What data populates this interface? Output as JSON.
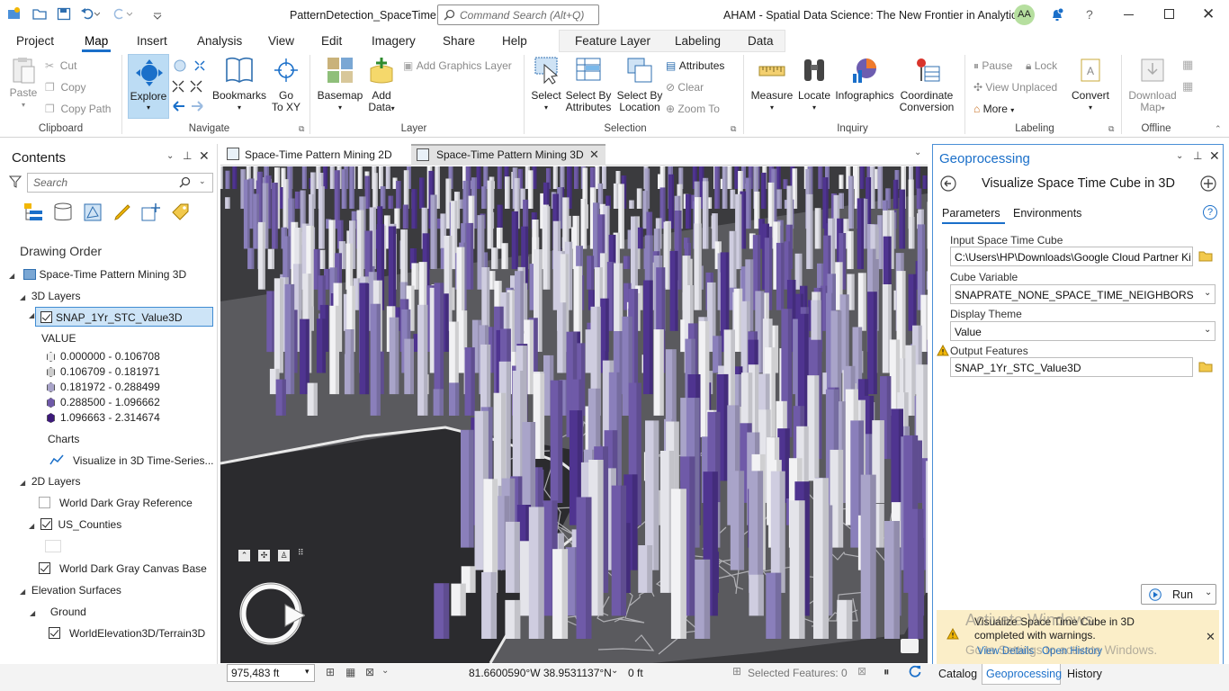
{
  "titlebar": {
    "project_title": "PatternDetection_SpaceTime",
    "command_search_placeholder": "Command Search (Alt+Q)",
    "org_title": "AHAM - Spatial Data Science:  The New Frontier in Analytics",
    "user_initials": "AA"
  },
  "ribbon_tabs": [
    "Project",
    "Map",
    "Insert",
    "Analysis",
    "View",
    "Edit",
    "Imagery",
    "Share",
    "Help"
  ],
  "contextual_tabs": [
    "Feature Layer",
    "Labeling",
    "Data"
  ],
  "clipboard": {
    "paste": "Paste",
    "cut": "Cut",
    "copy": "Copy",
    "copy_path": "Copy Path",
    "group": "Clipboard"
  },
  "navigate": {
    "explore": "Explore",
    "bookmarks": "Bookmarks",
    "go_to_xy": "Go\nTo XY",
    "go": "Go",
    "to_xy": "To XY",
    "group": "Navigate"
  },
  "layer": {
    "basemap": "Basemap",
    "add": "Add",
    "data": "Data",
    "add_graphics": "Add Graphics Layer",
    "group": "Layer"
  },
  "selection": {
    "select": "Select",
    "by_attr_1": "Select By",
    "by_attr_2": "Attributes",
    "by_loc_1": "Select By",
    "by_loc_2": "Location",
    "attributes": "Attributes",
    "clear": "Clear",
    "zoom_to": "Zoom To",
    "group": "Selection"
  },
  "inquiry": {
    "measure": "Measure",
    "locate": "Locate",
    "infographics": "Infographics",
    "coord_1": "Coordinate",
    "coord_2": "Conversion",
    "group": "Inquiry"
  },
  "labeling": {
    "pause": "Pause",
    "lock": "Lock",
    "view_unplaced": "View Unplaced",
    "more": "More",
    "convert": "Convert",
    "group": "Labeling"
  },
  "offline": {
    "download_1": "Download",
    "download_2": "Map",
    "group": "Offline"
  },
  "contents": {
    "title": "Contents",
    "search_placeholder": "Search",
    "drawing_order": "Drawing Order",
    "map_name": "Space-Time Pattern Mining 3D",
    "layers_3d": "3D Layers",
    "stc_layer": "SNAP_1Yr_STC_Value3D",
    "value_heading": "VALUE",
    "legend": [
      {
        "label": "0.000000 - 0.106708",
        "color": "#eeeeee"
      },
      {
        "label": "0.106709 - 0.181971",
        "color": "#cccccc"
      },
      {
        "label": "0.181972 - 0.288499",
        "color": "#a9a4c9"
      },
      {
        "label": "0.288500 - 1.096662",
        "color": "#6f5aa8"
      },
      {
        "label": "1.096663 - 2.314674",
        "color": "#3d1a7a"
      }
    ],
    "charts_heading": "Charts",
    "chart_item": "Visualize in 3D Time-Series...",
    "layers_2d": "2D Layers",
    "ref_layer": "World Dark Gray Reference",
    "counties": "US_Counties",
    "canvas_base": "World Dark Gray Canvas Base",
    "elevation": "Elevation Surfaces",
    "ground": "Ground",
    "terrain": "WorldElevation3D/Terrain3D"
  },
  "map_tabs": [
    {
      "label": "Space-Time Pattern Mining 2D",
      "active": false
    },
    {
      "label": "Space-Time Pattern Mining 3D",
      "active": true
    }
  ],
  "status": {
    "scale": "975,483 ft",
    "coords": "81.6600590°W 38.9531137°N",
    "elevation": "0 ft",
    "selected_features": "Selected Features: 0"
  },
  "geoprocessing": {
    "title": "Geoprocessing",
    "tool_name": "Visualize Space Time Cube in 3D",
    "tab_parameters": "Parameters",
    "tab_environments": "Environments",
    "input_label": "Input Space Time Cube",
    "input_value": "C:\\Users\\HP\\Downloads\\Google Cloud Partner Ki",
    "cube_var_label": "Cube Variable",
    "cube_var_value": "SNAPRATE_NONE_SPACE_TIME_NEIGHBORS",
    "theme_label": "Display Theme",
    "theme_value": "Value",
    "output_label": "Output Features",
    "output_value": "SNAP_1Yr_STC_Value3D",
    "run": "Run",
    "message": "Visualize Space Time Cube in 3D completed with warnings.",
    "view_details": "View Details",
    "open_history": "Open History",
    "watermark_1": "Activate Windows",
    "watermark_2": "Go to Settings to activate Windows."
  },
  "bottom_tabs": [
    "Catalog",
    "Geoprocessing",
    "History"
  ],
  "colors": {
    "accent": "#1a6fc9",
    "map_bg": "#2d2d30",
    "violet": "#6f5aa8"
  }
}
